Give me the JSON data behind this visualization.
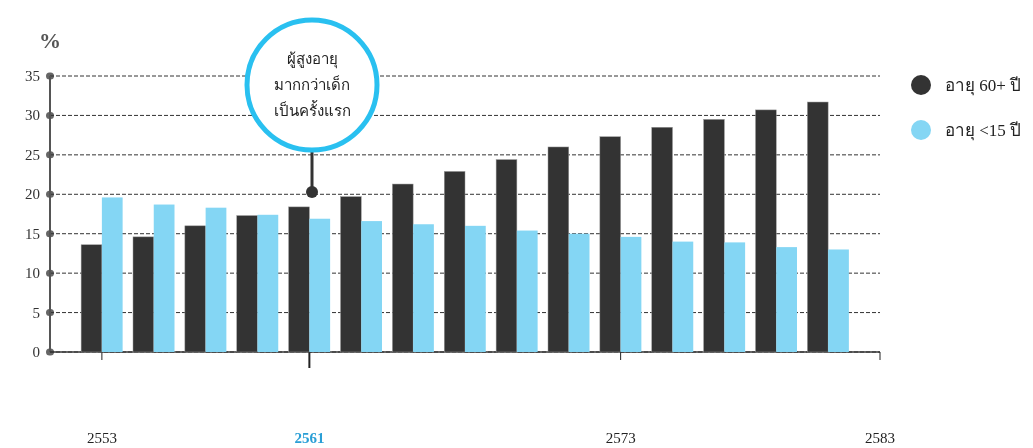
{
  "chart_data": {
    "type": "bar",
    "ylabel": "%",
    "x": [
      2553,
      2555,
      2557,
      2559,
      2561,
      2563,
      2565,
      2567,
      2569,
      2571,
      2573,
      2575,
      2577,
      2579,
      2581
    ],
    "series": [
      {
        "name": "อายุ 60+ ปี",
        "color": "#333333",
        "values": [
          13.6,
          14.6,
          16.0,
          17.3,
          18.4,
          19.7,
          21.3,
          22.9,
          24.4,
          26.0,
          27.3,
          28.5,
          29.5,
          30.7,
          31.7
        ]
      },
      {
        "name": "อายุ <15 ปี",
        "color": "#84d6f4",
        "values": [
          19.6,
          18.7,
          18.3,
          17.4,
          16.9,
          16.6,
          16.2,
          16.0,
          15.4,
          15.0,
          14.6,
          14.0,
          13.9,
          13.3,
          13.0
        ]
      }
    ],
    "xlim": [
      2551,
      2583
    ],
    "xticks": [
      2553,
      2561,
      2573,
      2583
    ],
    "ylim": [
      0,
      35
    ],
    "yticks": [
      0,
      5,
      10,
      15,
      20,
      25,
      30,
      35
    ],
    "grid": "y",
    "legend": "right",
    "annotations": [
      "ผู้สูงอายุ มากกว่าเด็ก เป็นครั้งแรก"
    ]
  }
}
